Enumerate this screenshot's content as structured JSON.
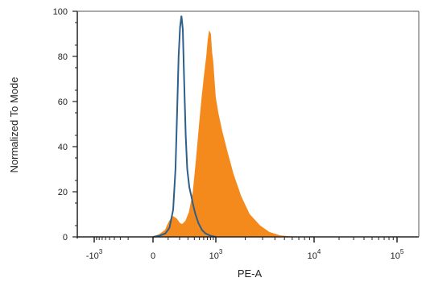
{
  "chart_data": {
    "type": "area",
    "xlabel": "PE-A",
    "ylabel": "Normalized To Mode",
    "ylim": [
      0,
      100
    ],
    "xscale": "biexponential",
    "x_ticks": [
      {
        "base": "-10",
        "exp": "3",
        "value": -1000
      },
      {
        "base": "0",
        "exp": "",
        "value": 0
      },
      {
        "base": "10",
        "exp": "3",
        "value": 1000
      },
      {
        "base": "10",
        "exp": "4",
        "value": 10000
      },
      {
        "base": "10",
        "exp": "5",
        "value": 100000
      }
    ],
    "y_ticks": [
      0,
      20,
      40,
      60,
      80,
      100
    ],
    "grid": false,
    "series": [
      {
        "style": "outline",
        "color": "#2e5f8a",
        "points": [
          [
            0,
            0
          ],
          [
            40,
            0.5
          ],
          [
            80,
            1.5
          ],
          [
            110,
            4
          ],
          [
            140,
            12
          ],
          [
            160,
            30
          ],
          [
            175,
            55
          ],
          [
            190,
            80
          ],
          [
            205,
            93
          ],
          [
            220,
            98
          ],
          [
            235,
            92
          ],
          [
            250,
            70
          ],
          [
            270,
            45
          ],
          [
            290,
            30
          ],
          [
            320,
            22
          ],
          [
            350,
            18
          ],
          [
            380,
            14
          ],
          [
            420,
            10
          ],
          [
            480,
            6
          ],
          [
            560,
            3
          ],
          [
            650,
            1.5
          ],
          [
            800,
            0.5
          ],
          [
            1000,
            0
          ]
        ]
      },
      {
        "style": "filled",
        "color": "#f58a1c",
        "points": [
          [
            0,
            0
          ],
          [
            40,
            1
          ],
          [
            80,
            3
          ],
          [
            110,
            7
          ],
          [
            140,
            9
          ],
          [
            170,
            8
          ],
          [
            200,
            6
          ],
          [
            230,
            5.5
          ],
          [
            270,
            7
          ],
          [
            320,
            11
          ],
          [
            380,
            20
          ],
          [
            440,
            35
          ],
          [
            500,
            50
          ],
          [
            560,
            62
          ],
          [
            620,
            72
          ],
          [
            680,
            80
          ],
          [
            720,
            87
          ],
          [
            760,
            91
          ],
          [
            800,
            90
          ],
          [
            840,
            82
          ],
          [
            880,
            78
          ],
          [
            930,
            70
          ],
          [
            980,
            62
          ],
          [
            1050,
            55
          ],
          [
            1150,
            47
          ],
          [
            1300,
            38
          ],
          [
            1500,
            28
          ],
          [
            1800,
            18
          ],
          [
            2200,
            10
          ],
          [
            2800,
            5
          ],
          [
            3500,
            2
          ],
          [
            4500,
            0.5
          ],
          [
            6000,
            0
          ]
        ]
      }
    ]
  }
}
